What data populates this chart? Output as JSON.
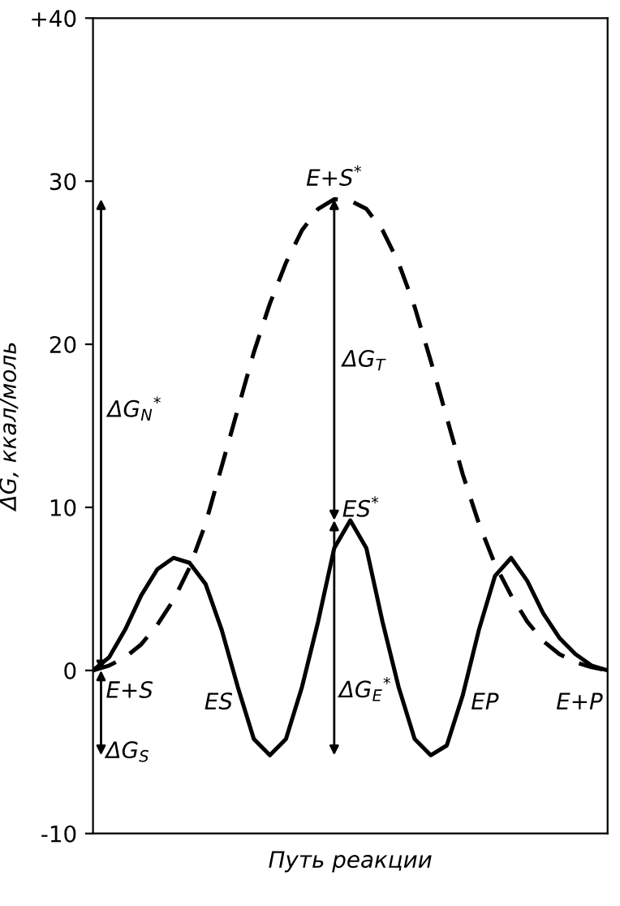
{
  "chart_data": {
    "type": "line",
    "xlabel": "Путь реакции",
    "ylabel": "ΔG, ккал/моль",
    "categories": [
      null,
      null,
      null,
      null,
      null,
      null,
      null,
      null,
      null,
      null,
      null,
      null,
      null,
      null,
      null,
      null,
      null,
      null,
      null,
      null,
      null,
      null,
      null,
      null,
      null,
      null,
      null,
      null,
      null,
      null,
      null,
      null,
      null
    ],
    "series": [
      {
        "color": "#000000",
        "line_style": "solid",
        "values": [
          0,
          0.8,
          2.5,
          4.6,
          6.2,
          6.9,
          6.6,
          5.3,
          2.5,
          -1.0,
          -4.2,
          -5.2,
          -4.2,
          -1.0,
          3.0,
          7.5,
          9.2,
          7.5,
          3.0,
          -1.0,
          -4.2,
          -5.2,
          -4.6,
          -1.5,
          2.5,
          5.8,
          6.9,
          5.5,
          3.5,
          2.0,
          1.0,
          0.3,
          0
        ]
      },
      {
        "color": "#000000",
        "line_style": "dashed",
        "values": [
          0,
          0.3,
          0.8,
          1.6,
          2.8,
          4.3,
          6.3,
          9,
          12.5,
          16,
          19.5,
          22.5,
          25,
          27,
          28.3,
          28.9,
          28.8,
          28.3,
          27,
          25,
          22.3,
          19,
          15.5,
          12,
          9,
          6.5,
          4.6,
          3.0,
          1.8,
          1.0,
          0.5,
          0.2,
          0
        ]
      }
    ],
    "ylim": [
      -10,
      40
    ],
    "yticks": [
      {
        "value": -10,
        "label": "-10"
      },
      0,
      10,
      20,
      30,
      {
        "value": 40,
        "label": "+40"
      }
    ],
    "grid": false,
    "legend": false,
    "marker": "none",
    "annotations": [
      "E+S$^{*}$",
      "ΔG$_{T}$",
      "ES$^{*}$",
      "ΔG$_{E}$$^{*}$",
      "ΔG$_{N}$$^{*}$",
      "E+S",
      "ΔG$_{S}$",
      "ES",
      "EP",
      "E+P"
    ]
  }
}
